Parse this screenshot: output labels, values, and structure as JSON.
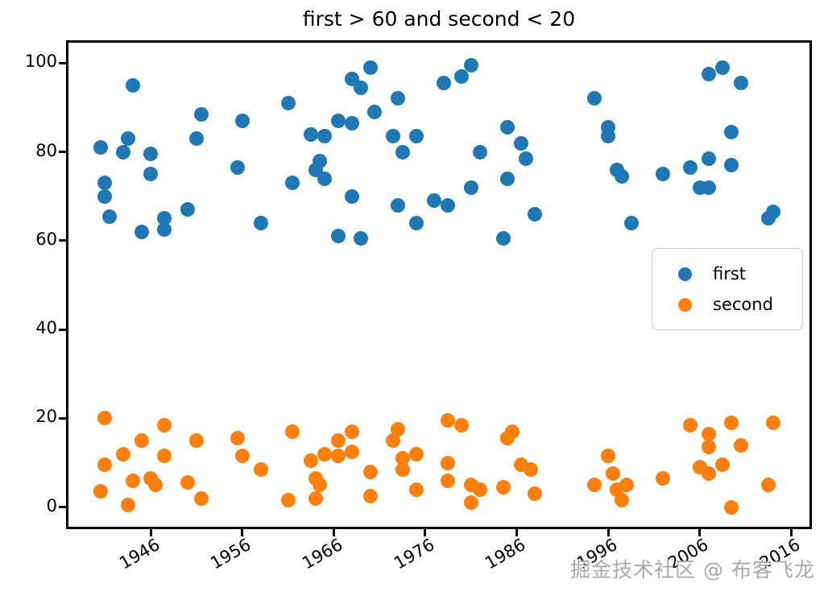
{
  "figure": {
    "watermark": "掘金技术社区 @ 布客飞龙"
  },
  "chart_data": {
    "type": "scatter",
    "title": "first > 60 and second < 20",
    "xlabel": "",
    "ylabel": "",
    "grid": false,
    "legend_position": "center right",
    "xlim": [
      1937,
      2018
    ],
    "ylim": [
      -4.4,
      104.6
    ],
    "x_ticks": [
      1946,
      1956,
      1966,
      1976,
      1986,
      1996,
      2006,
      2016
    ],
    "y_ticks": [
      0,
      20,
      40,
      60,
      80,
      100
    ],
    "series": [
      {
        "name": "first",
        "color": "#1f77b4",
        "points": [
          [
            1944,
            95
          ],
          [
            1951.5,
            88.5
          ],
          [
            1956,
            87
          ],
          [
            1943.5,
            83
          ],
          [
            1951,
            83
          ],
          [
            1940.5,
            81
          ],
          [
            1943,
            80
          ],
          [
            1946,
            79.5
          ],
          [
            1955.5,
            76.5
          ],
          [
            1946,
            75
          ],
          [
            1941,
            73
          ],
          [
            1941,
            70
          ],
          [
            1950,
            67
          ],
          [
            1941.5,
            65.5
          ],
          [
            1947.5,
            65
          ],
          [
            1947.5,
            62.5
          ],
          [
            1945,
            62
          ],
          [
            1970,
            99
          ],
          [
            1968,
            96.5
          ],
          [
            1969,
            94.5
          ],
          [
            1973,
            92
          ],
          [
            1961,
            91
          ],
          [
            1970.5,
            89
          ],
          [
            1966.5,
            87
          ],
          [
            1968,
            86.5
          ],
          [
            1963.5,
            84
          ],
          [
            1965,
            83.5
          ],
          [
            1972.5,
            83.5
          ],
          [
            1975,
            83.5
          ],
          [
            1973.5,
            80
          ],
          [
            1964.5,
            78
          ],
          [
            1964,
            76
          ],
          [
            1965,
            74
          ],
          [
            1961.5,
            73
          ],
          [
            1968,
            70
          ],
          [
            1973,
            68
          ],
          [
            1975,
            64
          ],
          [
            1958,
            64
          ],
          [
            1966.5,
            61
          ],
          [
            1969,
            60.5
          ],
          [
            1981,
            99.5
          ],
          [
            1980,
            97
          ],
          [
            1978,
            95.5
          ],
          [
            1994.5,
            92
          ],
          [
            1985,
            85.5
          ],
          [
            1996,
            85.5
          ],
          [
            1996,
            83.5
          ],
          [
            1986.5,
            82
          ],
          [
            1982,
            80
          ],
          [
            1987,
            78.5
          ],
          [
            1997,
            76
          ],
          [
            1997.5,
            74.5
          ],
          [
            1985,
            74
          ],
          [
            1981,
            72
          ],
          [
            1977,
            69
          ],
          [
            1978.5,
            68
          ],
          [
            1988,
            66
          ],
          [
            1984.5,
            60.5
          ],
          [
            2008.5,
            99
          ],
          [
            2007,
            97.5
          ],
          [
            2010.5,
            95.5
          ],
          [
            2009.5,
            84.5
          ],
          [
            2007,
            78.5
          ],
          [
            2009.5,
            77
          ],
          [
            2005,
            76.5
          ],
          [
            2002,
            75
          ],
          [
            2006,
            72
          ],
          [
            2007,
            72
          ],
          [
            2013.5,
            65
          ],
          [
            2014,
            66.5
          ],
          [
            1998.5,
            64
          ]
        ]
      },
      {
        "name": "second",
        "color": "#ff7f0e",
        "points": [
          [
            1941,
            20
          ],
          [
            1947.5,
            18.5
          ],
          [
            1945,
            15
          ],
          [
            1951,
            15
          ],
          [
            1955.5,
            15.5
          ],
          [
            1943,
            12
          ],
          [
            1947.5,
            11.5
          ],
          [
            1956,
            11.5
          ],
          [
            1941,
            9.5
          ],
          [
            1944,
            6
          ],
          [
            1946,
            6.5
          ],
          [
            1946.5,
            5
          ],
          [
            1950,
            5.5
          ],
          [
            1940.5,
            3.5
          ],
          [
            1951.5,
            2
          ],
          [
            1943.5,
            0.5
          ],
          [
            1958,
            8.5
          ],
          [
            1961.5,
            17
          ],
          [
            1968,
            17
          ],
          [
            1973,
            17.5
          ],
          [
            1972.5,
            15
          ],
          [
            1966.5,
            15
          ],
          [
            1968,
            12.5
          ],
          [
            1966.5,
            11.5
          ],
          [
            1975,
            12
          ],
          [
            1965,
            12
          ],
          [
            1963.5,
            10.5
          ],
          [
            1973.5,
            11
          ],
          [
            1973.5,
            8.5
          ],
          [
            1970,
            8
          ],
          [
            1964,
            6.5
          ],
          [
            1964.5,
            5
          ],
          [
            1970,
            2.5
          ],
          [
            1975,
            4
          ],
          [
            1961,
            1.5
          ],
          [
            1964,
            2
          ],
          [
            1978.5,
            19.5
          ],
          [
            1980,
            18.5
          ],
          [
            1978.5,
            10
          ],
          [
            1985.5,
            17
          ],
          [
            1985,
            15.5
          ],
          [
            1978.5,
            6
          ],
          [
            1981,
            5
          ],
          [
            1982,
            4
          ],
          [
            1981,
            1
          ],
          [
            1984.5,
            4.5
          ],
          [
            1986.5,
            9.5
          ],
          [
            1987.5,
            8.5
          ],
          [
            1988,
            3
          ],
          [
            1994.5,
            5
          ],
          [
            1996,
            11.5
          ],
          [
            1996.5,
            7.5
          ],
          [
            1997,
            4
          ],
          [
            1997.5,
            1.5
          ],
          [
            2005,
            18.5
          ],
          [
            2009.5,
            19
          ],
          [
            2014,
            19
          ],
          [
            2007,
            16.5
          ],
          [
            2007,
            13.5
          ],
          [
            2010.5,
            14
          ],
          [
            2006,
            9
          ],
          [
            2008.5,
            9.5
          ],
          [
            2007,
            7.5
          ],
          [
            2002,
            6.5
          ],
          [
            2013.5,
            5
          ],
          [
            2009.5,
            0
          ],
          [
            1998,
            5
          ]
        ]
      }
    ]
  }
}
